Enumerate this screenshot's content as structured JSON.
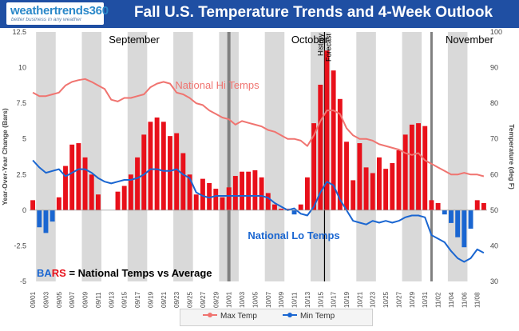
{
  "header": {
    "logo_name": "weathertrends360",
    "logo_tagline": "better business in any weather",
    "title": "Fall U.S. Temperature Trends and 4-Week Outlook"
  },
  "colors": {
    "header_bg": "#1f4fa3",
    "bar_pos": "#e8101a",
    "bar_neg": "#1a66d1",
    "max_line": "#f07470",
    "min_line": "#1a66d1",
    "week_band": "#d9d9d9",
    "marker": "#808080"
  },
  "chart_data": {
    "type": "bar+line",
    "left_axis": {
      "label": "Year-Over-Year Change (Bars)",
      "min": -5,
      "max": 12.5,
      "ticks": [
        "12.5",
        "10",
        "7.5",
        "5",
        "2.5",
        "0",
        "-2.5",
        "-5"
      ]
    },
    "right_axis": {
      "label": "Temperature (deg F)",
      "min": 30,
      "max": 100,
      "ticks": [
        "100",
        "90",
        "80",
        "70",
        "60",
        "50",
        "40",
        "30"
      ]
    },
    "x_tick_labels": [
      "09/01",
      "09/03",
      "09/05",
      "09/07",
      "09/09",
      "09/11",
      "09/13",
      "09/15",
      "09/17",
      "09/19",
      "09/21",
      "09/23",
      "09/25",
      "09/27",
      "09/29",
      "10/01",
      "10/03",
      "10/05",
      "10/07",
      "10/09",
      "10/11",
      "10/13",
      "10/15",
      "10/17",
      "10/19",
      "10/21",
      "10/23",
      "10/25",
      "10/27",
      "10/29",
      "10/31",
      "11/02",
      "11/04",
      "11/06",
      "11/08"
    ],
    "bars": [
      0.7,
      -1.2,
      -1.6,
      -0.8,
      0.9,
      3.1,
      4.6,
      4.7,
      3.7,
      2.5,
      1.1,
      0,
      0,
      1.3,
      1.7,
      2.5,
      3.7,
      5.3,
      6.2,
      6.5,
      6.2,
      5.2,
      5.4,
      4.0,
      2.5,
      1.1,
      2.2,
      1.9,
      1.5,
      0.9,
      1.6,
      2.4,
      2.7,
      2.7,
      2.8,
      2.3,
      1.2,
      0.4,
      0.1,
      0.1,
      -0.3,
      0.4,
      2.3,
      6.1,
      8.8,
      11.2,
      9.8,
      7.8,
      4.8,
      2.1,
      4.7,
      3.0,
      2.6,
      3.7,
      2.9,
      3.3,
      4.2,
      5.3,
      6.0,
      6.1,
      5.9,
      0.7,
      0.5,
      -0.3,
      -0.9,
      -1.9,
      -2.6,
      -1.3,
      0.7,
      0.5
    ],
    "max_temp": [
      83,
      82,
      82,
      82.5,
      83,
      85,
      86,
      86.5,
      86.8,
      86,
      85,
      84,
      81,
      80.5,
      81.5,
      81.5,
      82,
      82.5,
      84.5,
      85.5,
      86,
      85.5,
      83,
      82.5,
      81.5,
      80,
      79.5,
      78,
      77,
      76,
      75.5,
      74,
      75,
      74.5,
      74,
      73.5,
      72.5,
      72,
      71,
      70,
      70,
      69.5,
      68,
      71,
      75,
      78,
      78,
      77,
      73,
      71,
      70,
      70,
      69.5,
      68.5,
      68,
      67.5,
      67,
      66,
      65.5,
      66,
      64,
      63,
      62,
      61,
      60,
      60,
      60.5,
      60,
      60,
      59.5
    ],
    "min_temp": [
      64,
      62,
      60.5,
      61,
      61.5,
      59.5,
      60.5,
      61.5,
      61.5,
      60.5,
      59,
      58,
      57.5,
      58,
      58.5,
      58.5,
      59,
      60,
      61.5,
      61.5,
      61,
      61,
      61.5,
      60,
      59,
      55,
      54,
      53.5,
      54,
      54,
      54,
      54,
      54,
      54,
      54,
      54,
      53.5,
      52,
      51,
      50,
      50.5,
      49,
      48.5,
      51,
      55,
      58,
      57,
      53,
      50,
      47,
      46.5,
      46,
      47,
      46.5,
      47,
      46.5,
      47,
      48,
      48.5,
      48.5,
      48,
      43,
      42,
      41,
      38.5,
      36.5,
      35.5,
      36.5,
      39,
      38
    ],
    "annotations": {
      "month_september": "September",
      "month_october": "October",
      "month_november": "November",
      "history": "History",
      "forecast": "Forecast",
      "hi_label": "National Hi Temps",
      "lo_label": "National Lo Temps",
      "bars_word": "BARS",
      "bars_rest": "= National Temps vs Average"
    },
    "legend": {
      "max": "Max Temp",
      "min": "Min Temp"
    }
  }
}
